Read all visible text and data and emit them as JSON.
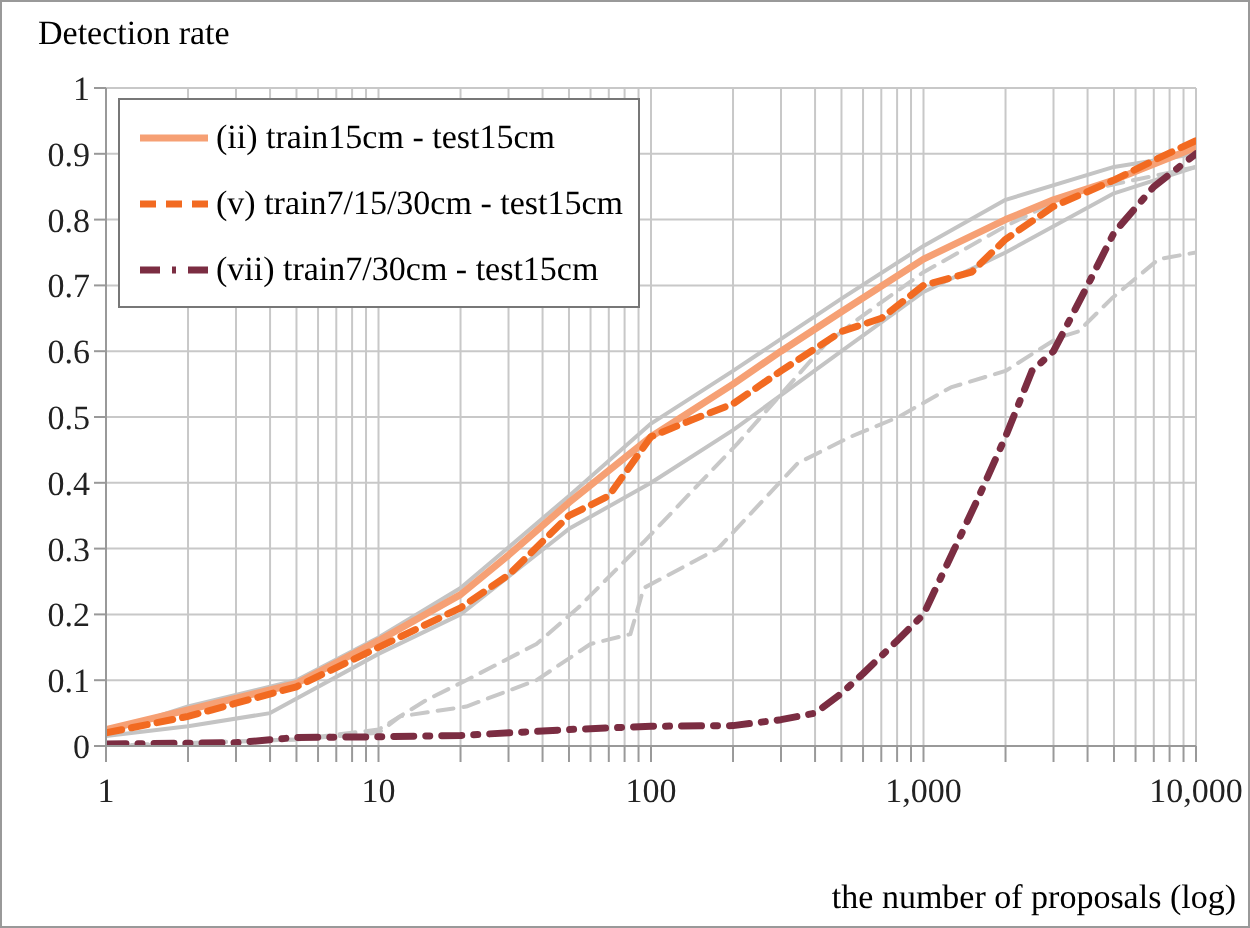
{
  "chart_data": {
    "type": "line",
    "ylabel": "Detection rate",
    "xlabel": "the number of proposals (log)",
    "log": "x",
    "xlim": [
      1,
      10000
    ],
    "ylim": [
      0,
      1
    ],
    "xticks": [
      1,
      {
        "value": 2,
        "label": null
      },
      {
        "value": 3,
        "label": null
      },
      {
        "value": 4,
        "label": null
      },
      {
        "value": 5,
        "label": null
      },
      {
        "value": 6,
        "label": null
      },
      {
        "value": 7,
        "label": null
      },
      {
        "value": 8,
        "label": null
      },
      {
        "value": 9,
        "label": null
      },
      10,
      {
        "value": 20,
        "label": null
      },
      {
        "value": 30,
        "label": null
      },
      {
        "value": 40,
        "label": null
      },
      {
        "value": 50,
        "label": null
      },
      {
        "value": 60,
        "label": null
      },
      {
        "value": 70,
        "label": null
      },
      {
        "value": 80,
        "label": null
      },
      {
        "value": 90,
        "label": null
      },
      100,
      {
        "value": 200,
        "label": null
      },
      {
        "value": 300,
        "label": null
      },
      {
        "value": 400,
        "label": null
      },
      {
        "value": 500,
        "label": null
      },
      {
        "value": 600,
        "label": null
      },
      {
        "value": 700,
        "label": null
      },
      {
        "value": 800,
        "label": null
      },
      {
        "value": 900,
        "label": null
      },
      {
        "value": 1000,
        "label": "1,000"
      },
      {
        "value": 2000,
        "label": null
      },
      {
        "value": 3000,
        "label": null
      },
      {
        "value": 4000,
        "label": null
      },
      {
        "value": 5000,
        "label": null
      },
      {
        "value": 6000,
        "label": null
      },
      {
        "value": 7000,
        "label": null
      },
      {
        "value": 8000,
        "label": null
      },
      {
        "value": 9000,
        "label": null
      },
      {
        "value": 10000,
        "label": "10,000"
      }
    ],
    "yticks": [
      0,
      0.1,
      0.2,
      0.3,
      0.4,
      0.5,
      0.6,
      0.7,
      0.8,
      0.9,
      1
    ],
    "grid": true,
    "legend": "top left",
    "marker": "none",
    "series": [
      {
        "color": "#c4c4c4",
        "line_style": "solid",
        "x": [
          1,
          2,
          5,
          10,
          20,
          50,
          100,
          200,
          500,
          1000,
          2000,
          5000,
          10000
        ],
        "values": [
          0.02,
          0.06,
          0.1,
          0.165,
          0.24,
          0.38,
          0.49,
          0.57,
          0.68,
          0.76,
          0.83,
          0.88,
          0.9
        ]
      },
      {
        "color": "#c4c4c4",
        "line_style": "solid",
        "x": [
          1,
          2,
          4,
          10,
          20,
          50,
          100,
          200,
          500,
          1000,
          2000,
          5000,
          10000
        ],
        "values": [
          0.015,
          0.03,
          0.05,
          0.14,
          0.2,
          0.33,
          0.4,
          0.48,
          0.6,
          0.69,
          0.75,
          0.84,
          0.88
        ]
      },
      {
        "color": "#c8c8c8",
        "line_style": "dashed",
        "x": [
          1,
          5,
          10,
          15,
          21,
          38,
          54,
          94,
          208,
          435,
          580,
          1000,
          2000,
          3500,
          10000
        ],
        "values": [
          0,
          0.01,
          0.025,
          0.07,
          0.1,
          0.155,
          0.21,
          0.31,
          0.46,
          0.61,
          0.65,
          0.72,
          0.79,
          0.84,
          0.88
        ]
      },
      {
        "color": "#c8c8c8",
        "line_style": "dashed",
        "x": [
          1,
          5,
          10,
          12,
          21,
          38,
          60,
          84,
          94,
          176,
          346,
          540,
          810,
          1260,
          2000,
          3100,
          3700,
          4900,
          7300,
          10000
        ],
        "values": [
          0,
          0.01,
          0.02,
          0.045,
          0.06,
          0.1,
          0.155,
          0.17,
          0.24,
          0.3,
          0.43,
          0.47,
          0.5,
          0.545,
          0.57,
          0.62,
          0.63,
          0.68,
          0.74,
          0.75
        ]
      },
      {
        "name": "(ii) train15cm - test15cm",
        "color": "#f6a074",
        "line_style": "solid",
        "x": [
          1,
          2,
          5,
          10,
          20,
          30,
          50,
          100,
          200,
          300,
          500,
          1000,
          2000,
          3000,
          5000,
          10000
        ],
        "values": [
          0.025,
          0.055,
          0.095,
          0.16,
          0.23,
          0.29,
          0.37,
          0.47,
          0.55,
          0.6,
          0.66,
          0.74,
          0.8,
          0.83,
          0.86,
          0.91
        ]
      },
      {
        "name": "(v) train7/15/30cm - test15cm",
        "color": "#f26a21",
        "line_style": "dashed",
        "x": [
          1,
          2,
          3,
          5,
          10,
          20,
          30,
          50,
          70,
          100,
          150,
          200,
          300,
          500,
          700,
          1000,
          1500,
          2000,
          3000,
          5000,
          7000,
          10000
        ],
        "values": [
          0.02,
          0.045,
          0.065,
          0.09,
          0.15,
          0.21,
          0.26,
          0.35,
          0.38,
          0.47,
          0.5,
          0.52,
          0.57,
          0.63,
          0.65,
          0.7,
          0.72,
          0.77,
          0.82,
          0.86,
          0.89,
          0.92
        ]
      },
      {
        "name": "(vii) train7/30cm - test15cm",
        "color": "#7b2d42",
        "line_style": "dashdot",
        "x": [
          1,
          3,
          5,
          10,
          20,
          50,
          100,
          200,
          300,
          400,
          500,
          600,
          800,
          1000,
          1300,
          1600,
          2000,
          2500,
          3000,
          4000,
          5000,
          7000,
          10000
        ],
        "values": [
          0.003,
          0.005,
          0.013,
          0.014,
          0.016,
          0.025,
          0.03,
          0.031,
          0.04,
          0.05,
          0.08,
          0.11,
          0.16,
          0.2,
          0.3,
          0.38,
          0.47,
          0.57,
          0.6,
          0.7,
          0.78,
          0.85,
          0.9
        ]
      }
    ]
  }
}
